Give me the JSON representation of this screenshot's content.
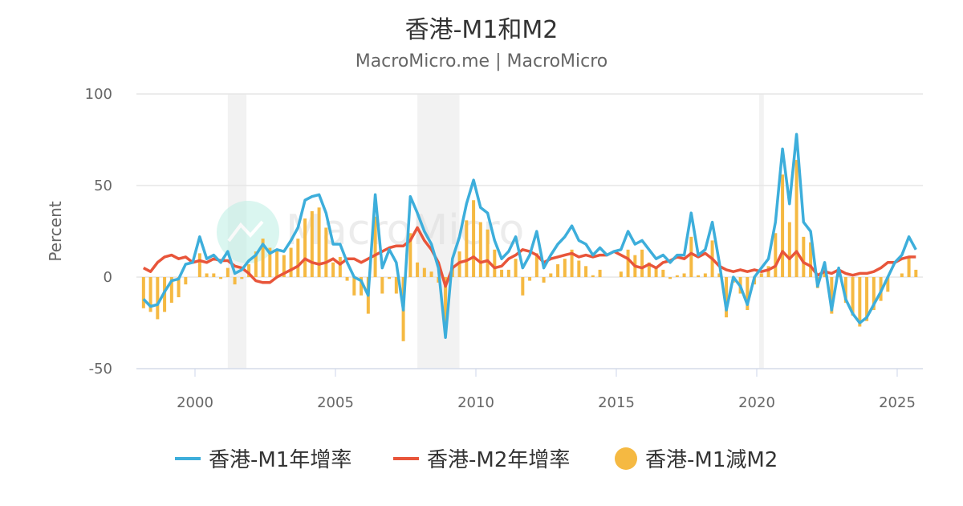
{
  "title": "香港-M1和M2",
  "subtitle": "MacroMicro.me | MacroMicro",
  "watermark": "MacroMicro",
  "chart_data": {
    "type": "line+bar",
    "ylabel": "Percent",
    "ylim": [
      -50,
      100
    ],
    "yticks": [
      "100",
      "50",
      "0",
      "-50"
    ],
    "ytick_values": [
      100,
      50,
      0,
      -50
    ],
    "xlim": [
      1998,
      2025.9
    ],
    "xticks": [
      "2000",
      "2005",
      "2010",
      "2015",
      "2020",
      "2025"
    ],
    "grid": true,
    "legend_position": "bottom",
    "shaded_periods": [
      [
        "2001-03",
        "2001-11"
      ],
      [
        "2007-12",
        "2009-06"
      ],
      [
        "2020-02",
        "2020-04"
      ]
    ],
    "colors": {
      "m1": "#3DAEDB",
      "m2": "#E8553A",
      "diff": "#F5B942",
      "shade": "#F2F2F2",
      "grid": "#E6E6E6"
    },
    "dates_start": "1998-03",
    "dates_step_months": 3,
    "series": [
      {
        "name": "香港-M1年增率",
        "kind": "line",
        "values": [
          -12,
          -16,
          -15,
          -8,
          -2,
          -1,
          7,
          8,
          22,
          10,
          12,
          8,
          14,
          2,
          4,
          9,
          12,
          18,
          13,
          15,
          14,
          20,
          27,
          42,
          44,
          45,
          35,
          18,
          18,
          8,
          0,
          -2,
          -10,
          45,
          5,
          15,
          8,
          -18,
          44,
          35,
          25,
          18,
          5,
          -33,
          10,
          22,
          40,
          53,
          38,
          35,
          20,
          10,
          14,
          22,
          5,
          12,
          25,
          5,
          12,
          18,
          22,
          28,
          20,
          18,
          12,
          16,
          12,
          14,
          15,
          25,
          18,
          20,
          15,
          10,
          12,
          8,
          12,
          12,
          35,
          12,
          15,
          30,
          8,
          -18,
          0,
          -5,
          -15,
          0,
          5,
          10,
          30,
          70,
          40,
          78,
          30,
          25,
          -5,
          8,
          -18,
          5,
          -12,
          -20,
          -25,
          -22,
          -15,
          -8,
          0,
          8,
          12,
          22,
          15
        ]
      },
      {
        "name": "香港-M2年增率",
        "kind": "line",
        "values": [
          5,
          3,
          8,
          11,
          12,
          10,
          11,
          8,
          9,
          8,
          10,
          9,
          9,
          6,
          5,
          2,
          -2,
          -3,
          -3,
          0,
          2,
          4,
          6,
          10,
          8,
          7,
          8,
          10,
          7,
          10,
          10,
          8,
          10,
          12,
          14,
          16,
          17,
          17,
          20,
          27,
          20,
          15,
          8,
          -5,
          5,
          8,
          9,
          11,
          8,
          9,
          5,
          6,
          10,
          12,
          15,
          14,
          12,
          8,
          10,
          11,
          12,
          13,
          11,
          12,
          11,
          12,
          12,
          14,
          12,
          10,
          6,
          5,
          7,
          5,
          8,
          9,
          11,
          10,
          13,
          11,
          13,
          10,
          6,
          4,
          3,
          4,
          3,
          4,
          3,
          4,
          6,
          14,
          10,
          14,
          8,
          6,
          1,
          3,
          2,
          4,
          2,
          1,
          2,
          2,
          3,
          5,
          8,
          8,
          10,
          11,
          11
        ]
      },
      {
        "name": "香港-M1減M2",
        "kind": "bar",
        "values": [
          -17,
          -19,
          -23,
          -19,
          -14,
          -11,
          -4,
          0,
          13,
          2,
          2,
          -1,
          5,
          -4,
          -1,
          7,
          14,
          21,
          16,
          15,
          12,
          16,
          21,
          32,
          36,
          38,
          27,
          8,
          11,
          -2,
          -10,
          -10,
          -20,
          33,
          -9,
          -1,
          -9,
          -35,
          24,
          8,
          5,
          3,
          -3,
          -28,
          5,
          14,
          31,
          42,
          30,
          26,
          15,
          4,
          4,
          10,
          -10,
          -2,
          13,
          -3,
          2,
          7,
          10,
          15,
          9,
          6,
          1,
          4,
          0,
          0,
          3,
          15,
          12,
          15,
          8,
          5,
          4,
          -1,
          1,
          2,
          22,
          1,
          2,
          20,
          2,
          -22,
          -3,
          -9,
          -18,
          -4,
          2,
          6,
          24,
          56,
          30,
          64,
          22,
          19,
          -6,
          5,
          -20,
          1,
          -14,
          -21,
          -27,
          -24,
          -18,
          -13,
          -8,
          0,
          2,
          11,
          4
        ]
      }
    ]
  }
}
